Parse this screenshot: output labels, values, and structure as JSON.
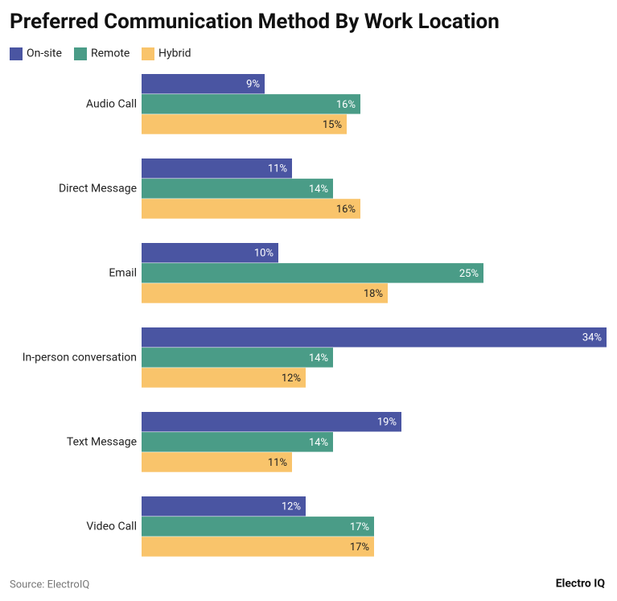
{
  "chart_data": {
    "type": "bar",
    "orientation": "horizontal",
    "title": "Preferred Communication Method By Work Location",
    "categories": [
      "Audio Call",
      "Direct Message",
      "Email",
      "In-person conversation",
      "Text Message",
      "Video Call"
    ],
    "series": [
      {
        "name": "On-site",
        "color": "#4a55a2",
        "label_color": "#ffffff",
        "values": [
          9,
          11,
          10,
          34,
          19,
          12
        ],
        "value_labels": [
          "9%",
          "11%",
          "10%",
          "34%",
          "19%",
          "12%"
        ]
      },
      {
        "name": "Remote",
        "color": "#4a9c87",
        "label_color": "#ffffff",
        "values": [
          16,
          14,
          25,
          14,
          14,
          17
        ],
        "value_labels": [
          "16%",
          "14%",
          "25%",
          "14%",
          "14%",
          "17%"
        ]
      },
      {
        "name": "Hybrid",
        "color": "#f9c46b",
        "label_color": "#222222",
        "values": [
          15,
          16,
          18,
          12,
          11,
          17
        ],
        "value_labels": [
          "15%",
          "16%",
          "18%",
          "12%",
          "11%",
          "17%"
        ]
      }
    ],
    "xlim": [
      0,
      34
    ],
    "source": "Source: ElectroIQ",
    "brand": "Electro IQ"
  }
}
